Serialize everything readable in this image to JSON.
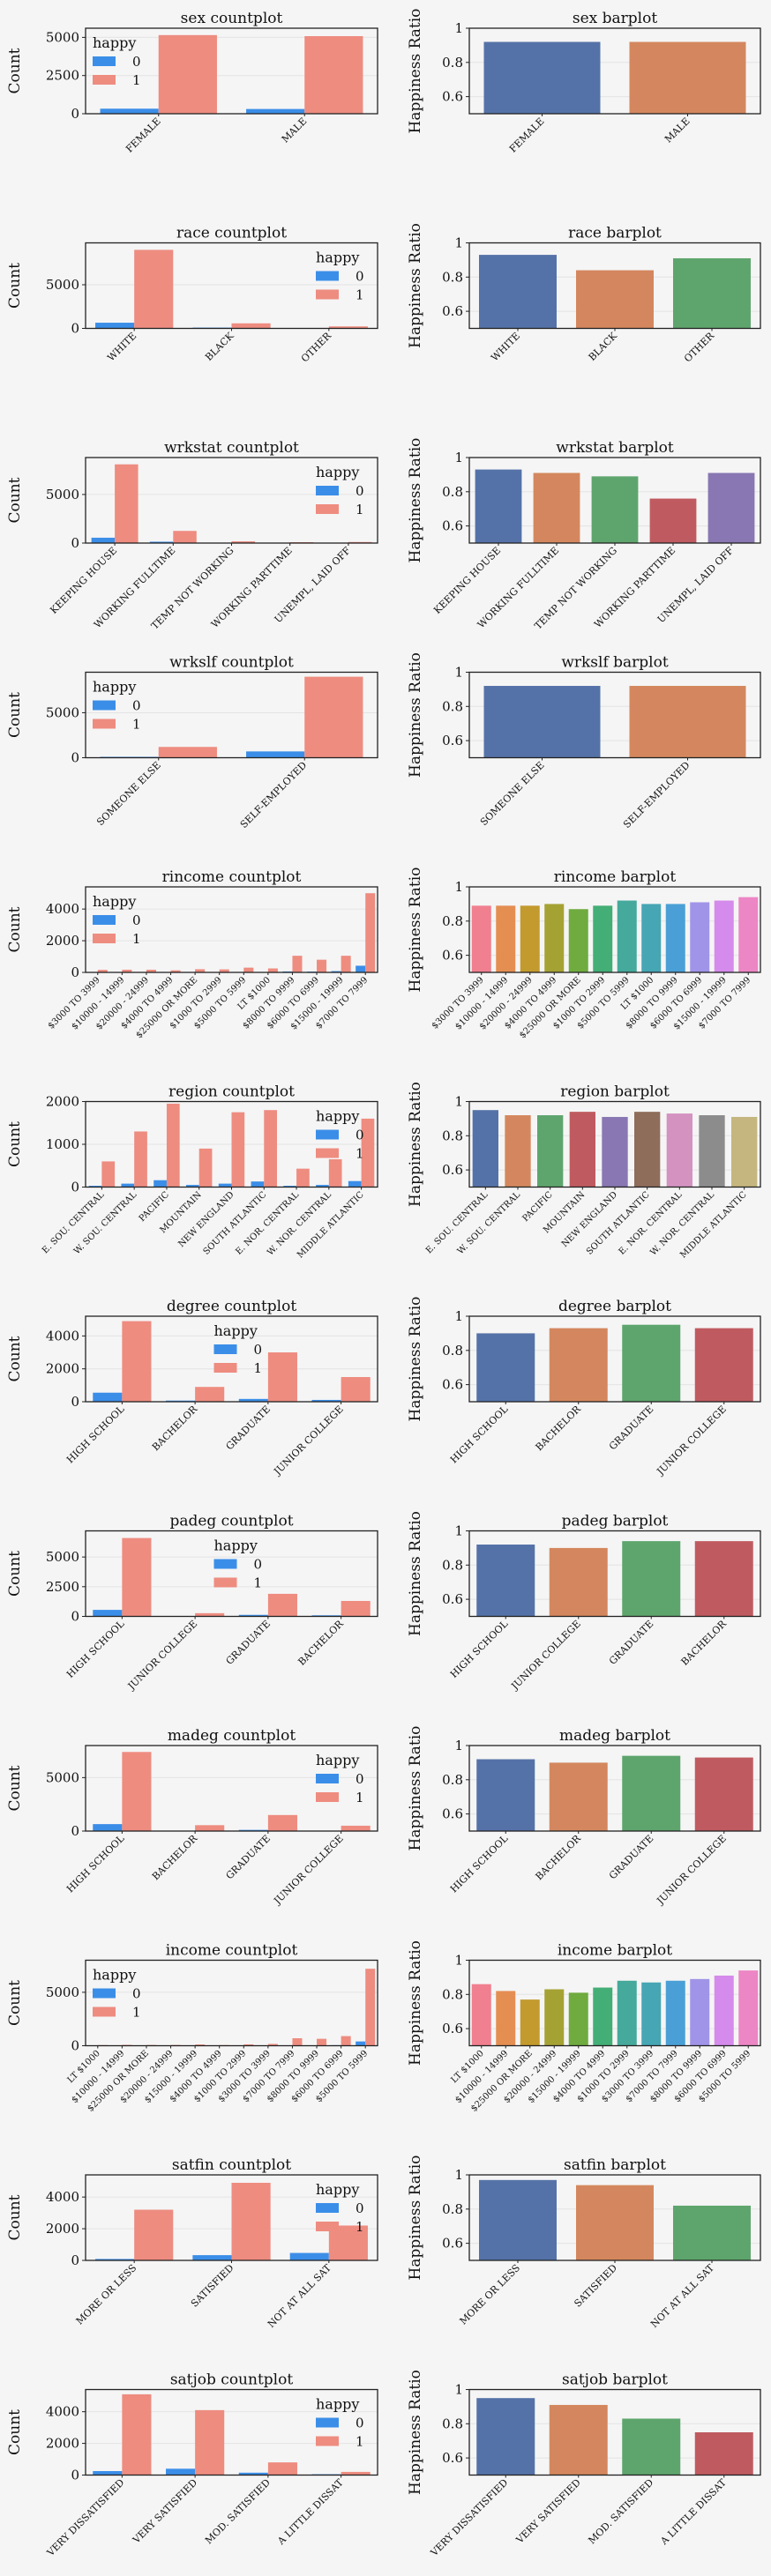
{
  "chart_data": [
    {
      "id": "sex-count",
      "type": "bar",
      "title": "sex countplot",
      "ylabel": "Count",
      "ylim": [
        0,
        5600
      ],
      "yticks": [
        0,
        2500,
        5000
      ],
      "categories": [
        "FEMALE",
        "MALE"
      ],
      "series": [
        {
          "name": "0",
          "values": [
            330,
            310
          ]
        },
        {
          "name": "1",
          "values": [
            5150,
            5080
          ]
        }
      ],
      "legend": {
        "title": "happy",
        "entries": [
          "0",
          "1"
        ],
        "position": "top-left"
      }
    },
    {
      "id": "sex-bar",
      "type": "bar",
      "title": "sex barplot",
      "ylabel": "Happiness Ratio",
      "ylim": [
        0.5,
        1.0
      ],
      "yticks": [
        0.6,
        0.8,
        1.0
      ],
      "categories": [
        "FEMALE",
        "MALE"
      ],
      "values": [
        0.92,
        0.92
      ]
    },
    {
      "id": "race-count",
      "type": "bar",
      "title": "race countplot",
      "ylabel": "Count",
      "ylim": [
        0,
        9800
      ],
      "yticks": [
        0,
        5000
      ],
      "categories": [
        "WHITE",
        "BLACK",
        "OTHER"
      ],
      "series": [
        {
          "name": "0",
          "values": [
            650,
            90,
            40
          ]
        },
        {
          "name": "1",
          "values": [
            9000,
            580,
            230
          ]
        }
      ],
      "legend": {
        "title": "happy",
        "entries": [
          "0",
          "1"
        ],
        "position": "top-right"
      }
    },
    {
      "id": "race-bar",
      "type": "bar",
      "title": "race barplot",
      "ylabel": "Happiness Ratio",
      "ylim": [
        0.5,
        1.0
      ],
      "yticks": [
        0.6,
        0.8,
        1.0
      ],
      "categories": [
        "WHITE",
        "BLACK",
        "OTHER"
      ],
      "values": [
        0.93,
        0.84,
        0.91
      ]
    },
    {
      "id": "wrkstat-count",
      "type": "bar",
      "title": "wrkstat countplot",
      "ylabel": "Count",
      "ylim": [
        0,
        8800
      ],
      "yticks": [
        0,
        5000
      ],
      "categories": [
        "KEEPING HOUSE",
        "WORKING FULLTIME",
        "TEMP NOT WORKING",
        "WORKING PARTTIME",
        "UNEMPL, LAID OFF"
      ],
      "series": [
        {
          "name": "0",
          "values": [
            550,
            140,
            20,
            20,
            15
          ]
        },
        {
          "name": "1",
          "values": [
            8100,
            1250,
            180,
            90,
            110
          ]
        }
      ],
      "legend": {
        "title": "happy",
        "entries": [
          "0",
          "1"
        ],
        "position": "top-right"
      }
    },
    {
      "id": "wrkstat-bar",
      "type": "bar",
      "title": "wrkstat barplot",
      "ylabel": "Happiness Ratio",
      "ylim": [
        0.5,
        1.0
      ],
      "yticks": [
        0.6,
        0.8,
        1.0
      ],
      "categories": [
        "KEEPING HOUSE",
        "WORKING FULLTIME",
        "TEMP NOT WORKING",
        "WORKING PARTTIME",
        "UNEMPL, LAID OFF"
      ],
      "values": [
        0.93,
        0.91,
        0.89,
        0.76,
        0.91
      ]
    },
    {
      "id": "wrkslf-count",
      "type": "bar",
      "title": "wrkslf countplot",
      "ylabel": "Count",
      "ylim": [
        0,
        9500
      ],
      "yticks": [
        0,
        5000
      ],
      "categories": [
        "SOMEONE ELSE",
        "SELF-EMPLOYED"
      ],
      "series": [
        {
          "name": "0",
          "values": [
            100,
            700
          ]
        },
        {
          "name": "1",
          "values": [
            1200,
            9000
          ]
        }
      ],
      "legend": {
        "title": "happy",
        "entries": [
          "0",
          "1"
        ],
        "position": "top-left"
      }
    },
    {
      "id": "wrkslf-bar",
      "type": "bar",
      "title": "wrkslf barplot",
      "ylabel": "Happiness Ratio",
      "ylim": [
        0.5,
        1.0
      ],
      "yticks": [
        0.6,
        0.8,
        1.0
      ],
      "categories": [
        "SOMEONE ELSE",
        "SELF-EMPLOYED"
      ],
      "values": [
        0.92,
        0.92
      ]
    },
    {
      "id": "rincome-count",
      "type": "bar",
      "title": "rincome countplot",
      "ylabel": "Count",
      "ylim": [
        0,
        5400
      ],
      "yticks": [
        0,
        2000,
        4000
      ],
      "categories": [
        "$3000 TO 3999",
        "$10000 - 14999",
        "$20000 - 24999",
        "$4000 TO 4999",
        "$25000 OR MORE",
        "$1000 TO 2999",
        "$5000 TO 5999",
        "LT $1000",
        "$8000 TO 9999",
        "$6000 TO 6999",
        "$15000 - 19999",
        "$7000 TO 7999"
      ],
      "series": [
        {
          "name": "0",
          "values": [
            10,
            15,
            15,
            10,
            15,
            15,
            20,
            15,
            60,
            50,
            80,
            420
          ]
        },
        {
          "name": "1",
          "values": [
            160,
            170,
            170,
            130,
            200,
            190,
            300,
            250,
            1050,
            800,
            1050,
            5000
          ]
        }
      ],
      "legend": {
        "title": "happy",
        "entries": [
          "0",
          "1"
        ],
        "position": "top-left"
      }
    },
    {
      "id": "rincome-bar",
      "type": "bar",
      "title": "rincome barplot",
      "ylabel": "Happiness Ratio",
      "ylim": [
        0.5,
        1.0
      ],
      "yticks": [
        0.6,
        0.8,
        1.0
      ],
      "categories": [
        "$3000 TO 3999",
        "$10000 - 14999",
        "$20000 - 24999",
        "$4000 TO 4999",
        "$25000 OR MORE",
        "$1000 TO 2999",
        "$5000 TO 5999",
        "LT $1000",
        "$8000 TO 9999",
        "$6000 TO 6999",
        "$15000 - 19999",
        "$7000 TO 7999"
      ],
      "values": [
        0.89,
        0.89,
        0.89,
        0.9,
        0.87,
        0.89,
        0.92,
        0.9,
        0.9,
        0.91,
        0.92,
        0.94
      ]
    },
    {
      "id": "region-count",
      "type": "bar",
      "title": "region countplot",
      "ylabel": "Count",
      "ylim": [
        0,
        2000
      ],
      "yticks": [
        0,
        1000,
        2000
      ],
      "categories": [
        "E. SOU. CENTRAL",
        "W. SOU. CENTRAL",
        "PACIFIC",
        "MOUNTAIN",
        "NEW ENGLAND",
        "SOUTH ATLANTIC",
        "E. NOR. CENTRAL",
        "W. NOR. CENTRAL",
        "MIDDLE ATLANTIC"
      ],
      "series": [
        {
          "name": "0",
          "values": [
            30,
            80,
            160,
            50,
            80,
            130,
            30,
            50,
            140
          ]
        },
        {
          "name": "1",
          "values": [
            600,
            1300,
            1950,
            900,
            1750,
            1800,
            430,
            650,
            1600
          ]
        }
      ],
      "legend": {
        "title": "happy",
        "entries": [
          "0",
          "1"
        ],
        "position": "top-right"
      }
    },
    {
      "id": "region-bar",
      "type": "bar",
      "title": "region barplot",
      "ylabel": "Happiness Ratio",
      "ylim": [
        0.5,
        1.0
      ],
      "yticks": [
        0.6,
        0.8,
        1.0
      ],
      "categories": [
        "E. SOU. CENTRAL",
        "W. SOU. CENTRAL",
        "PACIFIC",
        "MOUNTAIN",
        "NEW ENGLAND",
        "SOUTH ATLANTIC",
        "E. NOR. CENTRAL",
        "W. NOR. CENTRAL",
        "MIDDLE ATLANTIC"
      ],
      "values": [
        0.95,
        0.92,
        0.92,
        0.94,
        0.91,
        0.94,
        0.93,
        0.92,
        0.91
      ]
    },
    {
      "id": "degree-count",
      "type": "bar",
      "title": "degree countplot",
      "ylabel": "Count",
      "ylim": [
        0,
        5200
      ],
      "yticks": [
        0,
        2000,
        4000
      ],
      "categories": [
        "HIGH SCHOOL",
        "BACHELOR",
        "GRADUATE",
        "JUNIOR COLLEGE"
      ],
      "series": [
        {
          "name": "0",
          "values": [
            550,
            70,
            170,
            110
          ]
        },
        {
          "name": "1",
          "values": [
            4900,
            900,
            3000,
            1500
          ]
        }
      ],
      "legend": {
        "title": "happy",
        "entries": [
          "0",
          "1"
        ],
        "position": "top-center"
      }
    },
    {
      "id": "degree-bar",
      "type": "bar",
      "title": "degree barplot",
      "ylabel": "Happiness Ratio",
      "ylim": [
        0.5,
        1.0
      ],
      "yticks": [
        0.6,
        0.8,
        1.0
      ],
      "categories": [
        "HIGH SCHOOL",
        "BACHELOR",
        "GRADUATE",
        "JUNIOR COLLEGE"
      ],
      "values": [
        0.9,
        0.93,
        0.95,
        0.93
      ]
    },
    {
      "id": "padeg-count",
      "type": "bar",
      "title": "padeg countplot",
      "ylabel": "Count",
      "ylim": [
        0,
        7200
      ],
      "yticks": [
        0,
        2500,
        5000
      ],
      "categories": [
        "HIGH SCHOOL",
        "JUNIOR COLLEGE",
        "GRADUATE",
        "BACHELOR"
      ],
      "series": [
        {
          "name": "0",
          "values": [
            550,
            15,
            130,
            90
          ]
        },
        {
          "name": "1",
          "values": [
            6600,
            270,
            1900,
            1300
          ]
        }
      ],
      "legend": {
        "title": "happy",
        "entries": [
          "0",
          "1"
        ],
        "position": "top-center"
      }
    },
    {
      "id": "padeg-bar",
      "type": "bar",
      "title": "padeg barplot",
      "ylabel": "Happiness Ratio",
      "ylim": [
        0.5,
        1.0
      ],
      "yticks": [
        0.6,
        0.8,
        1.0
      ],
      "categories": [
        "HIGH SCHOOL",
        "JUNIOR COLLEGE",
        "GRADUATE",
        "BACHELOR"
      ],
      "values": [
        0.92,
        0.9,
        0.94,
        0.94
      ]
    },
    {
      "id": "madeg-count",
      "type": "bar",
      "title": "madeg countplot",
      "ylabel": "Count",
      "ylim": [
        0,
        8000
      ],
      "yticks": [
        0,
        5000
      ],
      "categories": [
        "HIGH SCHOOL",
        "BACHELOR",
        "GRADUATE",
        "JUNIOR COLLEGE"
      ],
      "series": [
        {
          "name": "0",
          "values": [
            650,
            30,
            110,
            40
          ]
        },
        {
          "name": "1",
          "values": [
            7400,
            550,
            1500,
            500
          ]
        }
      ],
      "legend": {
        "title": "happy",
        "entries": [
          "0",
          "1"
        ],
        "position": "top-right"
      }
    },
    {
      "id": "madeg-bar",
      "type": "bar",
      "title": "madeg barplot",
      "ylabel": "Happiness Ratio",
      "ylim": [
        0.5,
        1.0
      ],
      "yticks": [
        0.6,
        0.8,
        1.0
      ],
      "categories": [
        "HIGH SCHOOL",
        "BACHELOR",
        "GRADUATE",
        "JUNIOR COLLEGE"
      ],
      "values": [
        0.92,
        0.9,
        0.94,
        0.93
      ]
    },
    {
      "id": "income-count",
      "type": "bar",
      "title": "income countplot",
      "ylabel": "Count",
      "ylim": [
        0,
        8000
      ],
      "yticks": [
        0,
        5000
      ],
      "categories": [
        "LT $1000",
        "$10000 - 14999",
        "$25000 OR MORE",
        "$20000 - 24999",
        "$15000 - 19999",
        "$4000 TO 4999",
        "$1000 TO 2999",
        "$3000 TO 3999",
        "$7000 TO 7999",
        "$8000 TO 9999",
        "$6000 TO 6999",
        "$5000 TO 5999"
      ],
      "series": [
        {
          "name": "0",
          "values": [
            5,
            5,
            10,
            5,
            10,
            5,
            10,
            10,
            30,
            30,
            50,
            400
          ]
        },
        {
          "name": "1",
          "values": [
            60,
            80,
            70,
            70,
            120,
            60,
            130,
            170,
            700,
            650,
            900,
            7200
          ]
        }
      ],
      "legend": {
        "title": "happy",
        "entries": [
          "0",
          "1"
        ],
        "position": "top-left"
      }
    },
    {
      "id": "income-bar",
      "type": "bar",
      "title": "income barplot",
      "ylabel": "Happiness Ratio",
      "ylim": [
        0.5,
        1.0
      ],
      "yticks": [
        0.6,
        0.8,
        1.0
      ],
      "categories": [
        "LT $1000",
        "$10000 - 14999",
        "$25000 OR MORE",
        "$20000 - 24999",
        "$15000 - 19999",
        "$4000 TO 4999",
        "$1000 TO 2999",
        "$3000 TO 3999",
        "$7000 TO 7999",
        "$8000 TO 9999",
        "$6000 TO 6999",
        "$5000 TO 5999"
      ],
      "values": [
        0.86,
        0.82,
        0.77,
        0.83,
        0.81,
        0.84,
        0.88,
        0.87,
        0.88,
        0.89,
        0.91,
        0.94
      ]
    },
    {
      "id": "satfin-count",
      "type": "bar",
      "title": "satfin countplot",
      "ylabel": "Count",
      "ylim": [
        0,
        5400
      ],
      "yticks": [
        0,
        2000,
        4000
      ],
      "categories": [
        "MORE OR LESS",
        "SATISFIED",
        "NOT AT ALL SAT"
      ],
      "series": [
        {
          "name": "0",
          "values": [
            90,
            330,
            470
          ]
        },
        {
          "name": "1",
          "values": [
            3200,
            4900,
            2200
          ]
        }
      ],
      "legend": {
        "title": "happy",
        "entries": [
          "0",
          "1"
        ],
        "position": "top-right"
      }
    },
    {
      "id": "satfin-bar",
      "type": "bar",
      "title": "satfin barplot",
      "ylabel": "Happiness Ratio",
      "ylim": [
        0.5,
        1.0
      ],
      "yticks": [
        0.6,
        0.8,
        1.0
      ],
      "categories": [
        "MORE OR LESS",
        "SATISFIED",
        "NOT AT ALL SAT"
      ],
      "values": [
        0.97,
        0.94,
        0.82
      ]
    },
    {
      "id": "satjob-count",
      "type": "bar",
      "title": "satjob countplot",
      "ylabel": "Count",
      "ylim": [
        0,
        5400
      ],
      "yticks": [
        0,
        2000,
        4000
      ],
      "categories": [
        "VERY DISSATISFIED",
        "VERY SATISFIED",
        "MOD. SATISFIED",
        "A LITTLE DISSAT"
      ],
      "series": [
        {
          "name": "0",
          "values": [
            250,
            400,
            150,
            50
          ]
        },
        {
          "name": "1",
          "values": [
            5100,
            4100,
            800,
            200
          ]
        }
      ],
      "legend": {
        "title": "happy",
        "entries": [
          "0",
          "1"
        ],
        "position": "top-right"
      }
    },
    {
      "id": "satjob-bar",
      "type": "bar",
      "title": "satjob barplot",
      "ylabel": "Happiness Ratio",
      "ylim": [
        0.5,
        1.0
      ],
      "yticks": [
        0.6,
        0.8,
        1.0
      ],
      "categories": [
        "VERY DISSATISFIED",
        "VERY SATISFIED",
        "MOD. SATISFIED",
        "A LITTLE DISSAT"
      ],
      "values": [
        0.95,
        0.91,
        0.83,
        0.75
      ]
    }
  ],
  "colors": {
    "happy_0": "#3b8ee8",
    "happy_1": "#ee8c80",
    "palette_deep": [
      "#5572a8",
      "#d4875e",
      "#5ea56d",
      "#bf5b60",
      "#8877b2",
      "#8f6d5b",
      "#d492c1",
      "#8c8c8c",
      "#c4b67e",
      "#5cb5d0"
    ],
    "palette_husl": [
      "#f07f8f",
      "#e48e52",
      "#c39a2e",
      "#a5a234",
      "#6fab3f",
      "#43ae76",
      "#45a99b",
      "#46a6b4",
      "#4aa0d6",
      "#a094e8",
      "#d58beb",
      "#ec86c4"
    ]
  }
}
